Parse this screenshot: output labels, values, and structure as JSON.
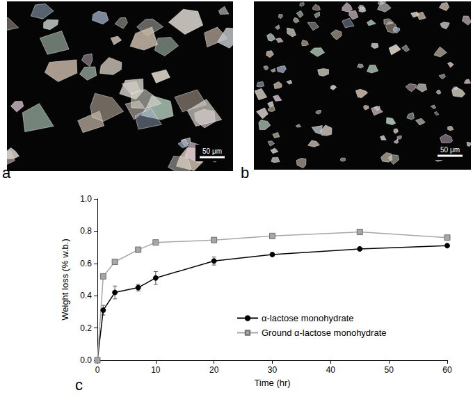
{
  "panels": [
    {
      "label": "a",
      "scale_bar": "50 μm"
    },
    {
      "label": "b",
      "scale_bar": "50 μm"
    }
  ],
  "chart_data": {
    "type": "line",
    "panel_label": "c",
    "x_label": "Time (hr)",
    "y_label": "Weight loss (% w.b.)",
    "xlim": [
      0,
      60
    ],
    "xticks": [
      0,
      10,
      20,
      30,
      40,
      50,
      60
    ],
    "ylim": [
      0,
      1
    ],
    "yticks": [
      {
        "value": 0,
        "label": "0.0"
      },
      0.2,
      0.4,
      0.6,
      0.8,
      {
        "value": 1,
        "label": "1.0"
      }
    ],
    "grid": false,
    "legend": "lower right",
    "x": [
      0,
      1,
      3,
      7,
      10,
      20,
      30,
      45,
      60
    ],
    "series": [
      {
        "name": "α-lactose monohydrate",
        "color": "#000000",
        "marker": "circle",
        "values": [
          0,
          0.31,
          0.42,
          0.45,
          0.51,
          0.615,
          0.655,
          0.69,
          0.71
        ],
        "errors": [
          0,
          0.03,
          0.04,
          0.02,
          0.04,
          0.025,
          0.01,
          0.01,
          0.01
        ]
      },
      {
        "name": "Ground α-lactose monohydrate",
        "color": "#a6a6a6",
        "marker": "square",
        "values": [
          0,
          0.52,
          0.61,
          0.685,
          0.73,
          0.745,
          0.77,
          0.795,
          0.76
        ]
      }
    ]
  }
}
